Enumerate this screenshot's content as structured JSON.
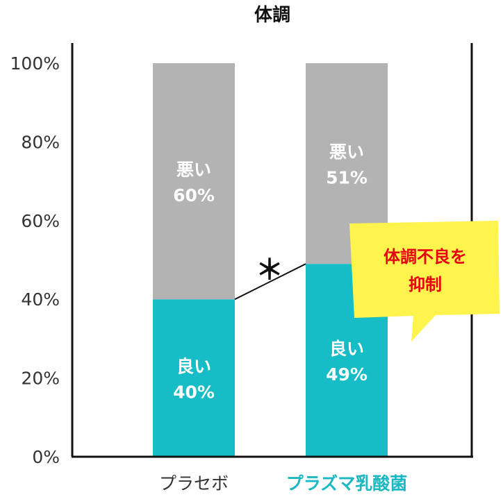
{
  "chart_data": {
    "type": "bar",
    "stacked": true,
    "title": "体調",
    "categories": [
      "プラセボ",
      "プラズマ乳酸菌"
    ],
    "category_label_colors": [
      "#333333",
      "#1bb8c4"
    ],
    "ylim": [
      0,
      100
    ],
    "y_ticks": [
      "0%",
      "20%",
      "40%",
      "60%",
      "80%",
      "100%"
    ],
    "series": [
      {
        "name": "良い",
        "color": "#16bdc6",
        "values": [
          40,
          49
        ],
        "labels": [
          {
            "name": "良い",
            "value": "40%"
          },
          {
            "name": "良い",
            "value": "49%"
          }
        ]
      },
      {
        "name": "悪い",
        "color": "#b3b3b3",
        "values": [
          60,
          51
        ],
        "labels": [
          {
            "name": "悪い",
            "value": "60%"
          },
          {
            "name": "悪い",
            "value": "51%"
          }
        ]
      }
    ],
    "significance_marker": "＊",
    "callout": {
      "lines": [
        "体調不良を",
        "抑制"
      ],
      "text_color": "#e60012",
      "background": "#fff34d"
    },
    "grid": false
  }
}
